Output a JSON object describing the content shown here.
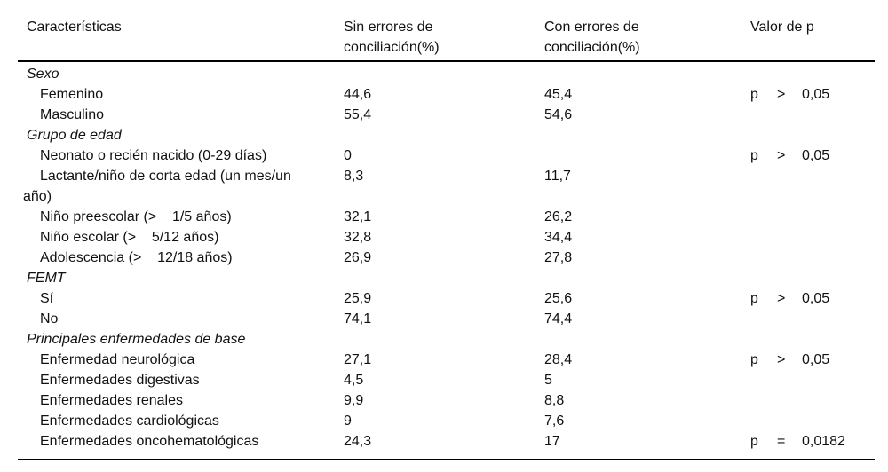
{
  "page": {
    "background_color": "#ffffff",
    "text_color": "#111111",
    "rule_color": "#000000"
  },
  "table": {
    "columns": [
      "Características",
      "Sin errores de\nconciliación(%)",
      "Con errores de\nconciliación(%)",
      "Valor de p"
    ],
    "rows": [
      {
        "type": "category",
        "label": "Sexo",
        "sin": "",
        "con": "",
        "p": null
      },
      {
        "type": "item",
        "label": "Femenino",
        "sin": "44,6",
        "con": "45,4",
        "p": {
          "sym": "p",
          "op": ">",
          "val": "0,05"
        }
      },
      {
        "type": "item",
        "label": "Masculino",
        "sin": "55,4",
        "con": "54,6",
        "p": null
      },
      {
        "type": "category",
        "label": "Grupo de edad",
        "sin": "",
        "con": "",
        "p": null
      },
      {
        "type": "item",
        "label": "Neonato o recién nacido (0-29 días)",
        "sin": "0",
        "con": "",
        "p": {
          "sym": "p",
          "op": ">",
          "val": "0,05"
        }
      },
      {
        "type": "item",
        "label": "Lactante/niño de corta edad (un mes/un\naño)",
        "sin": "8,3",
        "con": "11,7",
        "p": null
      },
      {
        "type": "item",
        "label": "Niño preescolar (>    1/5 años)",
        "sin": "32,1",
        "con": "26,2",
        "p": null
      },
      {
        "type": "item",
        "label": "Niño escolar (>    5/12 años)",
        "sin": "32,8",
        "con": "34,4",
        "p": null
      },
      {
        "type": "item",
        "label": "Adolescencia (>    12/18 años)",
        "sin": "26,9",
        "con": "27,8",
        "p": null
      },
      {
        "type": "category",
        "label": "FEMT",
        "sin": "",
        "con": "",
        "p": null
      },
      {
        "type": "item",
        "label": "Sí",
        "sin": "25,9",
        "con": "25,6",
        "p": {
          "sym": "p",
          "op": ">",
          "val": "0,05"
        }
      },
      {
        "type": "item",
        "label": "No",
        "sin": "74,1",
        "con": "74,4",
        "p": null
      },
      {
        "type": "category",
        "label": "Principales enfermedades de base",
        "sin": "",
        "con": "",
        "p": null
      },
      {
        "type": "item",
        "label": "Enfermedad neurológica",
        "sin": "27,1",
        "con": "28,4",
        "p": {
          "sym": "p",
          "op": ">",
          "val": "0,05"
        }
      },
      {
        "type": "item",
        "label": "Enfermedades digestivas",
        "sin": "4,5",
        "con": "5",
        "p": null
      },
      {
        "type": "item",
        "label": "Enfermedades renales",
        "sin": "9,9",
        "con": "8,8",
        "p": null
      },
      {
        "type": "item",
        "label": "Enfermedades cardiológicas",
        "sin": "9",
        "con": "7,6",
        "p": null
      },
      {
        "type": "item",
        "label": "Enfermedades oncohematológicas",
        "sin": "24,3",
        "con": "17",
        "p": {
          "sym": "p",
          "op": "=",
          "val": "0,0182"
        }
      }
    ]
  }
}
